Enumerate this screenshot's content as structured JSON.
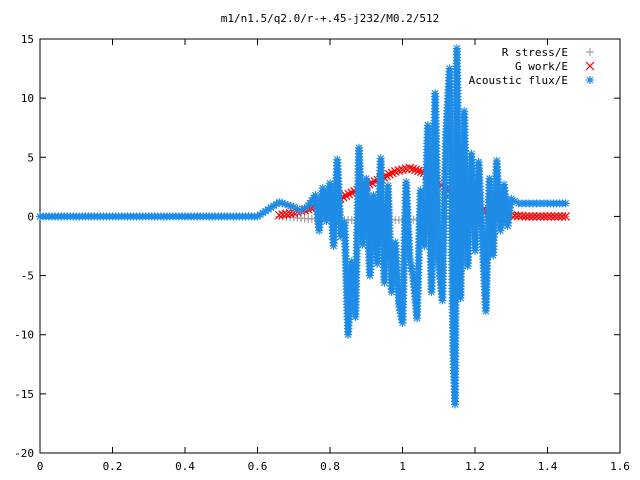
{
  "chart_data": {
    "type": "scatter",
    "title": "m1/n1.5/q2.0/r-+.45-j232/M0.2/512",
    "xlabel": "",
    "ylabel": "",
    "xlim": [
      0,
      1.6
    ],
    "ylim": [
      -20,
      15
    ],
    "xticks": [
      "0",
      "0.2",
      "0.4",
      "0.6",
      "0.8",
      "1",
      "1.2",
      "1.4",
      "1.6"
    ],
    "yticks": [
      "15",
      "10",
      "5",
      "0",
      "-5",
      "-10",
      "-15",
      "-20"
    ],
    "grid": false,
    "legend_position": "top-right",
    "series": [
      {
        "name": "R stress/E",
        "marker": "+",
        "color": "#a0a0a0",
        "points": [
          [
            0.66,
            0.0
          ],
          [
            0.7,
            -0.1
          ],
          [
            0.74,
            -0.2
          ],
          [
            0.78,
            -0.2
          ],
          [
            0.82,
            -0.3
          ],
          [
            0.86,
            -0.3
          ],
          [
            0.9,
            -0.3
          ],
          [
            0.94,
            -0.3
          ],
          [
            0.98,
            -0.3
          ],
          [
            1.02,
            -0.3
          ],
          [
            1.06,
            -0.2
          ],
          [
            1.1,
            -0.1
          ],
          [
            1.14,
            -0.1
          ],
          [
            1.18,
            0.0
          ],
          [
            1.22,
            0.0
          ],
          [
            1.26,
            0.0
          ],
          [
            1.3,
            0.0
          ],
          [
            1.34,
            0.0
          ],
          [
            1.38,
            0.0
          ],
          [
            1.42,
            0.0
          ],
          [
            1.45,
            0.0
          ]
        ]
      },
      {
        "name": "G work/E",
        "marker": "x",
        "color": "#ff0000",
        "points": [
          [
            0.66,
            0.1
          ],
          [
            0.7,
            0.3
          ],
          [
            0.74,
            0.6
          ],
          [
            0.78,
            1.0
          ],
          [
            0.82,
            1.4
          ],
          [
            0.86,
            2.0
          ],
          [
            0.9,
            2.6
          ],
          [
            0.94,
            3.2
          ],
          [
            0.98,
            3.8
          ],
          [
            1.02,
            4.1
          ],
          [
            1.06,
            3.7
          ],
          [
            1.1,
            2.8
          ],
          [
            1.14,
            1.8
          ],
          [
            1.18,
            1.0
          ],
          [
            1.22,
            0.5
          ],
          [
            1.26,
            0.3
          ],
          [
            1.3,
            0.1
          ],
          [
            1.34,
            0.0
          ],
          [
            1.38,
            0.0
          ],
          [
            1.42,
            0.0
          ],
          [
            1.45,
            0.0
          ]
        ]
      },
      {
        "name": "Acoustic flux/E",
        "marker": "*",
        "color": "#1e8ce6",
        "points": [
          [
            0.0,
            0.0
          ],
          [
            0.6,
            0.0
          ],
          [
            0.66,
            1.2
          ],
          [
            0.7,
            0.8
          ],
          [
            0.72,
            0.5
          ],
          [
            0.74,
            0.9
          ],
          [
            0.76,
            1.8
          ],
          [
            0.77,
            -1.2
          ],
          [
            0.78,
            2.4
          ],
          [
            0.79,
            -0.4
          ],
          [
            0.8,
            2.8
          ],
          [
            0.81,
            -2.5
          ],
          [
            0.82,
            4.8
          ],
          [
            0.83,
            -1.7
          ],
          [
            0.84,
            -0.5
          ],
          [
            0.85,
            -10.0
          ],
          [
            0.86,
            -3.8
          ],
          [
            0.87,
            -8.5
          ],
          [
            0.88,
            5.8
          ],
          [
            0.89,
            -2.4
          ],
          [
            0.9,
            3.2
          ],
          [
            0.91,
            -5.0
          ],
          [
            0.92,
            1.8
          ],
          [
            0.93,
            -4.0
          ],
          [
            0.94,
            4.9
          ],
          [
            0.95,
            -5.6
          ],
          [
            0.96,
            2.6
          ],
          [
            0.97,
            -6.4
          ],
          [
            0.98,
            -2.2
          ],
          [
            0.99,
            -7.4
          ],
          [
            1.0,
            -9.0
          ],
          [
            1.01,
            2.9
          ],
          [
            1.02,
            -3.6
          ],
          [
            1.03,
            -5.2
          ],
          [
            1.04,
            -8.6
          ],
          [
            1.05,
            2.2
          ],
          [
            1.06,
            -2.5
          ],
          [
            1.07,
            7.7
          ],
          [
            1.08,
            -6.4
          ],
          [
            1.09,
            10.4
          ],
          [
            1.1,
            -4.0
          ],
          [
            1.11,
            -7.1
          ],
          [
            1.12,
            6.9
          ],
          [
            1.13,
            12.5
          ],
          [
            1.14,
            -11.2
          ],
          [
            1.145,
            -15.9
          ],
          [
            1.15,
            14.2
          ],
          [
            1.16,
            -6.9
          ],
          [
            1.17,
            8.9
          ],
          [
            1.18,
            -4.2
          ],
          [
            1.19,
            5.3
          ],
          [
            1.2,
            -2.9
          ],
          [
            1.21,
            4.6
          ],
          [
            1.22,
            -1.8
          ],
          [
            1.23,
            -8.0
          ],
          [
            1.24,
            3.2
          ],
          [
            1.25,
            -3.3
          ],
          [
            1.26,
            4.7
          ],
          [
            1.27,
            -1.2
          ],
          [
            1.28,
            2.7
          ],
          [
            1.29,
            -0.8
          ],
          [
            1.3,
            1.5
          ],
          [
            1.32,
            1.1
          ],
          [
            1.36,
            1.1
          ],
          [
            1.4,
            1.1
          ],
          [
            1.45,
            1.1
          ]
        ]
      }
    ]
  }
}
